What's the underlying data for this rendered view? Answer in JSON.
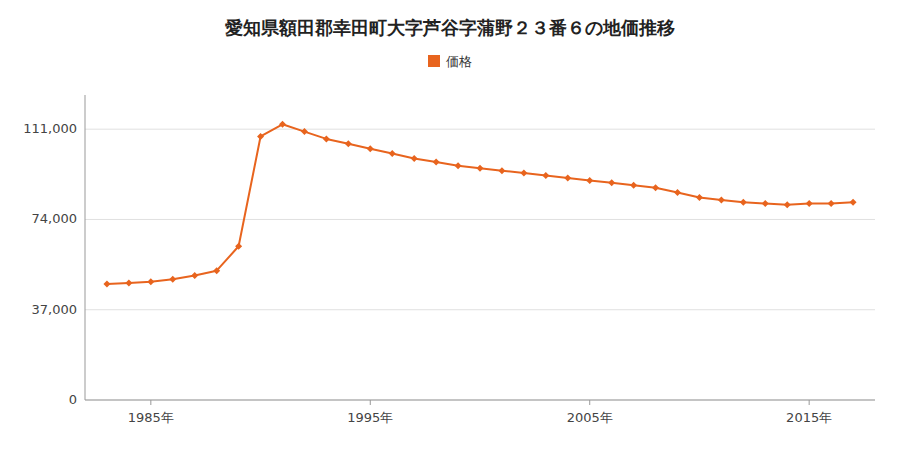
{
  "chart_data": {
    "type": "line",
    "title": "愛知県額田郡幸田町大字芦谷字蒲野２３番６の地価推移",
    "x": [
      1983,
      1984,
      1985,
      1986,
      1987,
      1988,
      1989,
      1990,
      1991,
      1992,
      1993,
      1994,
      1995,
      1996,
      1997,
      1998,
      1999,
      2000,
      2001,
      2002,
      2003,
      2004,
      2005,
      2006,
      2007,
      2008,
      2009,
      2010,
      2011,
      2012,
      2013,
      2014,
      2015,
      2016,
      2017
    ],
    "series": [
      {
        "name": "価格",
        "color": "#E8641E",
        "marker": "diamond",
        "values": [
          47500,
          48000,
          48500,
          49500,
          51000,
          53000,
          63000,
          108000,
          113000,
          110000,
          107000,
          105000,
          103000,
          101000,
          99000,
          97500,
          96000,
          95000,
          94000,
          93000,
          92000,
          91000,
          90000,
          89000,
          88000,
          87000,
          85000,
          83000,
          82000,
          81000,
          80500,
          80000,
          80500,
          80500,
          81000
        ]
      }
    ],
    "xlim": [
      1982,
      2018
    ],
    "xticks": [
      {
        "value": 1985,
        "label": "1985年"
      },
      {
        "value": 1995,
        "label": "1995年"
      },
      {
        "value": 2005,
        "label": "2005年"
      },
      {
        "value": 2015,
        "label": "2015年"
      }
    ],
    "ylim": [
      0,
      125000
    ],
    "yticks": [
      0,
      {
        "value": 37000,
        "label": "37,000"
      },
      {
        "value": 74000,
        "label": "74,000"
      },
      {
        "value": 111000,
        "label": "111,000"
      }
    ],
    "grid": true,
    "legend": "top"
  }
}
